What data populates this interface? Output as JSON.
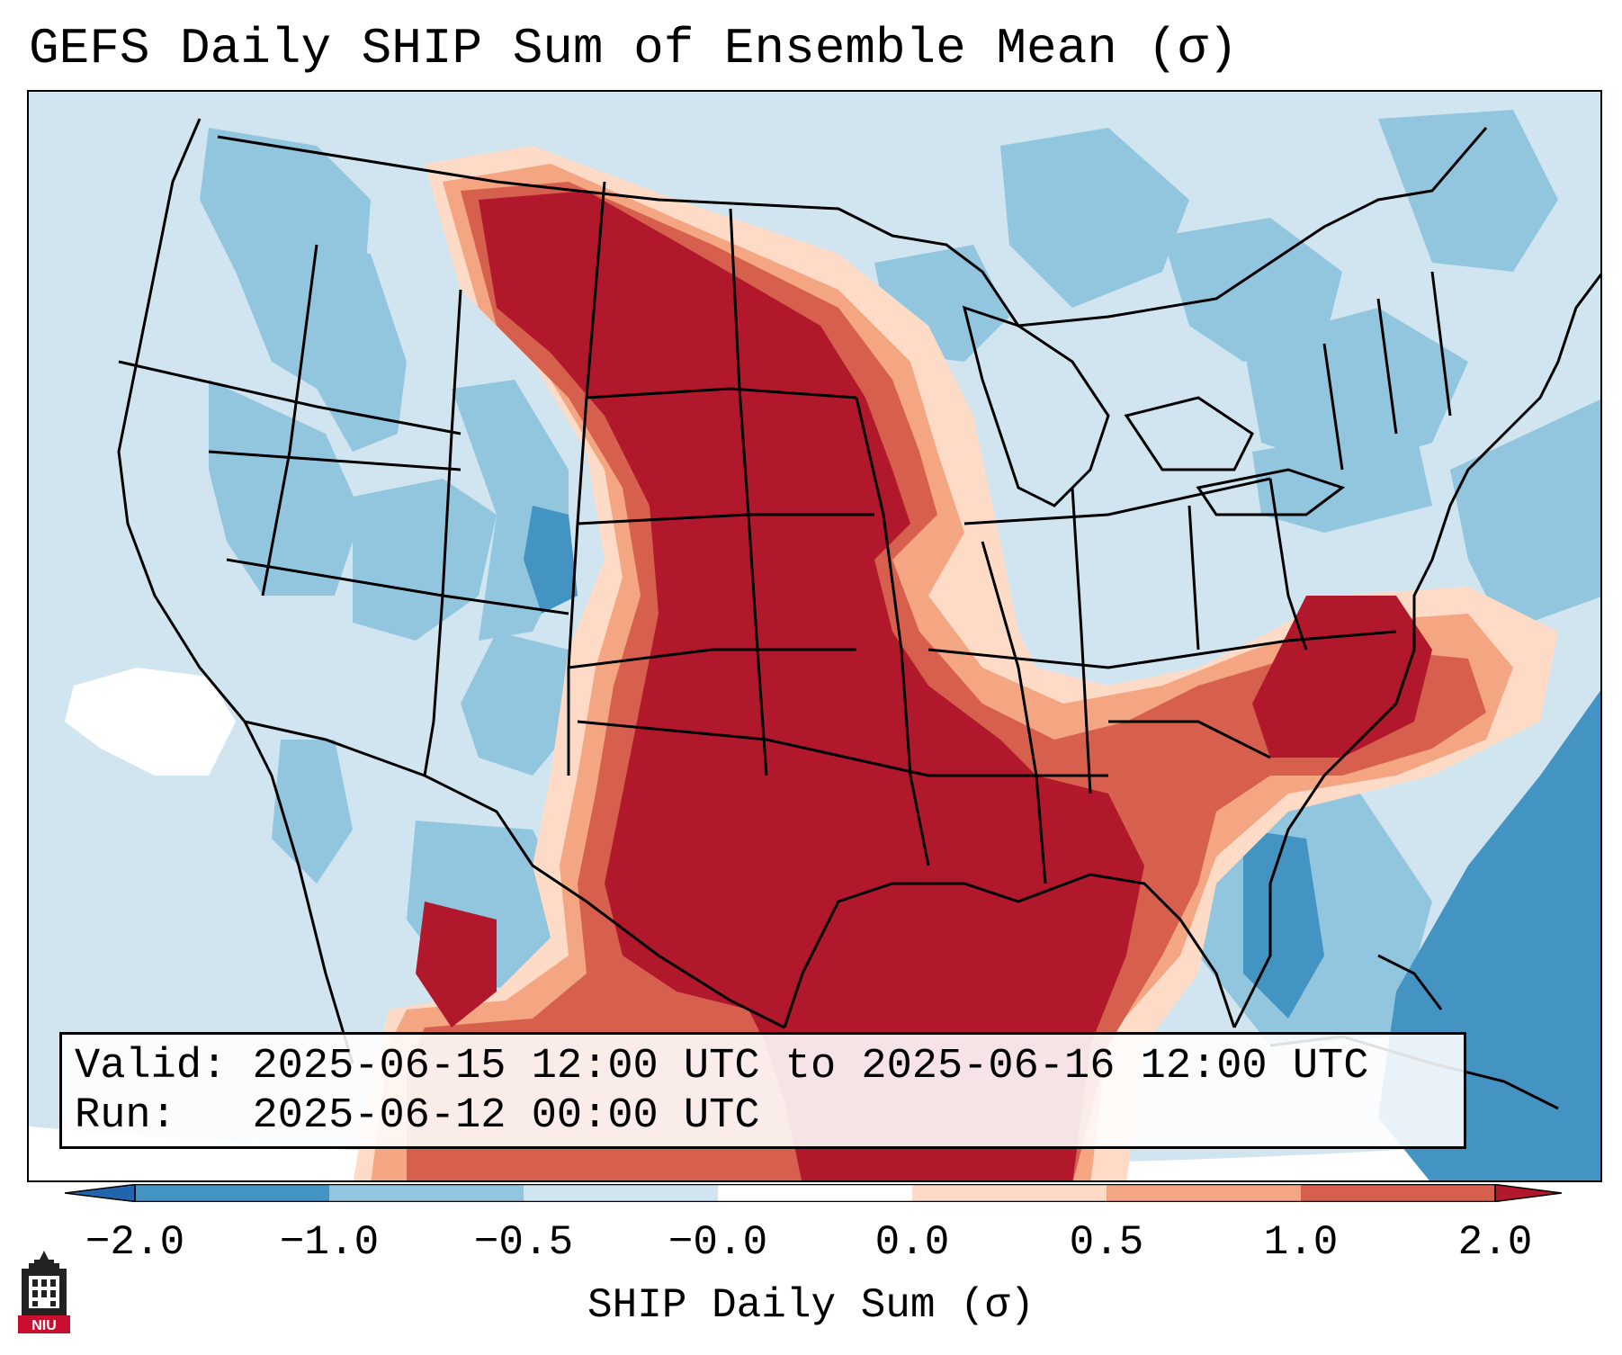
{
  "title": "GEFS Daily SHIP Sum of Ensemble Mean (σ)",
  "valid_label": "Valid:",
  "valid_value": "2025-06-15 12:00 UTC to 2025-06-16 12:00 UTC",
  "run_label": "Run:",
  "run_value": "2025-06-12 00:00 UTC",
  "colorbar": {
    "label": "SHIP Daily Sum (σ)",
    "ticks": [
      "−2.0",
      "−1.0",
      "−0.5",
      "−0.0",
      "0.0",
      "0.5",
      "1.0",
      "2.0"
    ],
    "colors": [
      "#4393c3",
      "#92c5de",
      "#d1e5f0",
      "#ffffff",
      "#fddbc7",
      "#f4a582",
      "#d6604d",
      "#b2182b"
    ]
  },
  "logo_text": "NIU",
  "map": {
    "region": "Contiguous United States and surrounding Canada, Mexico, Caribbean",
    "anomaly_regions": [
      {
        "name": "northern-plains-southern-plains-core",
        "category": "2.0"
      },
      {
        "name": "southeast-coast",
        "category": "1.0"
      },
      {
        "name": "western-atlantic",
        "category": "-2.0"
      }
    ]
  }
}
